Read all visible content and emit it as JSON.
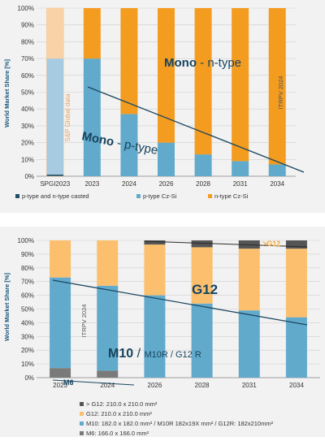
{
  "chart_data": [
    {
      "type": "bar",
      "stacked": true,
      "categories": [
        "SPGI2023",
        "2023",
        "2024",
        "2026",
        "2028",
        "2031",
        "2034"
      ],
      "series": [
        {
          "name": "p-type and n-type casted",
          "color": "#1f4e67",
          "values": [
            1,
            0,
            0,
            0,
            0,
            0,
            0
          ]
        },
        {
          "name": "p-type Cz-Si",
          "color": "#62aacb",
          "values": [
            69,
            70,
            37,
            20,
            13,
            9,
            7
          ]
        },
        {
          "name": "n-type Cz-Si",
          "color": "#f39c1f",
          "values": [
            30,
            30,
            63,
            80,
            87,
            91,
            93
          ]
        }
      ],
      "faded_first_bar_colors": [
        "#a7cbe0",
        "#f9d3a7"
      ],
      "ylabel": "World Market Share [%]",
      "ylim": [
        0,
        100
      ],
      "yticks": [
        "0%",
        "10%",
        "20%",
        "30%",
        "40%",
        "50%",
        "60%",
        "70%",
        "80%",
        "90%",
        "100%"
      ],
      "grid": true,
      "legend_position": "bottom",
      "annotations": {
        "mono_n_bold": "Mono",
        "mono_n_rest": " - n-type",
        "mono_p_bold": "Mono",
        "mono_p_rest": " - p-type",
        "source_note": "S&P Global data",
        "itrpv": "ITRPV 2024"
      }
    },
    {
      "type": "bar",
      "stacked": true,
      "categories": [
        "2023",
        "2024",
        "2026",
        "2028",
        "2031",
        "2034"
      ],
      "series": [
        {
          "name": "M6: 166.0 x 166.0 mm²",
          "color": "#7a7a7a",
          "values": [
            7,
            5,
            0,
            0,
            0,
            0
          ]
        },
        {
          "name": "M10: 182.0 x 182.0 mm² / M10R 182x19X mm² / G12R: 182x210mm²",
          "color": "#62aacb",
          "values": [
            66,
            62,
            60,
            54,
            49,
            44
          ]
        },
        {
          "name": "G12: 210.0 x 210.0 mm²",
          "color": "#fbbf6e",
          "values": [
            27,
            33,
            37,
            41,
            45,
            50
          ]
        },
        {
          "name": "> G12: 210.0 x 210.0 mm²",
          "color": "#555555",
          "values": [
            0,
            0,
            3,
            5,
            6,
            6
          ]
        }
      ],
      "ylabel": "World Market Share [%]",
      "ylim": [
        0,
        100
      ],
      "yticks": [
        "0%",
        "10%",
        "20%",
        "30%",
        "40%",
        "50%",
        "60%",
        "70%",
        "80%",
        "90%",
        "100%"
      ],
      "grid": true,
      "legend_position": "bottom",
      "annotations": {
        "g12": "G12",
        "gt_g12": ">G12",
        "m10_a": "M10",
        "m10_b": " / ",
        "m10_c": "M10R / G12 R",
        "m6": "M6",
        "itrpv": "ITRPV 2024"
      }
    }
  ]
}
